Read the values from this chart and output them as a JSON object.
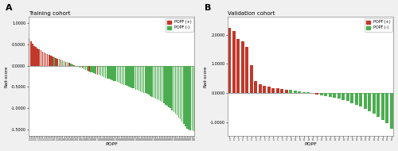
{
  "title_A": "Training cohort",
  "title_B": "Validation cohort",
  "panel_A_label": "A",
  "panel_B_label": "B",
  "xlabel": "POPF",
  "ylabel": "Rad-score",
  "legend_pos_label": "POPF (+)",
  "legend_neg_label": "POPF (-)",
  "color_pos": "#c0392b",
  "color_neg": "#4cad50",
  "bg_color": "#f0f0f0",
  "plot_bg_color": "#ffffff",
  "ylim_A": [
    -1.65,
    1.15
  ],
  "ylim_B": [
    -1.45,
    2.6
  ],
  "yticks_A": [
    -1.5,
    -1.0,
    -0.5,
    0.0,
    0.5,
    1.0
  ],
  "yticks_B": [
    -1.0,
    0.0,
    1.0,
    2.0
  ],
  "training_values": [
    0.65,
    0.58,
    0.52,
    0.47,
    0.44,
    0.41,
    0.38,
    0.36,
    0.33,
    0.31,
    0.29,
    0.27,
    0.25,
    0.23,
    0.22,
    0.2,
    0.19,
    0.17,
    0.16,
    0.14,
    0.13,
    0.11,
    0.09,
    0.08,
    0.06,
    0.05,
    0.03,
    0.01,
    -0.01,
    -0.02,
    -0.04,
    -0.05,
    -0.07,
    -0.09,
    -0.1,
    -0.12,
    -0.13,
    -0.15,
    -0.16,
    -0.18,
    -0.19,
    -0.21,
    -0.22,
    -0.24,
    -0.25,
    -0.27,
    -0.28,
    -0.3,
    -0.31,
    -0.33,
    -0.34,
    -0.36,
    -0.37,
    -0.39,
    -0.4,
    -0.42,
    -0.43,
    -0.45,
    -0.46,
    -0.48,
    -0.5,
    -0.51,
    -0.53,
    -0.54,
    -0.56,
    -0.57,
    -0.59,
    -0.61,
    -0.62,
    -0.64,
    -0.65,
    -0.67,
    -0.69,
    -0.71,
    -0.73,
    -0.75,
    -0.77,
    -0.79,
    -0.81,
    -0.83,
    -0.86,
    -0.89,
    -0.92,
    -0.95,
    -0.98,
    -1.01,
    -1.05,
    -1.09,
    -1.13,
    -1.17,
    -1.22,
    -1.27,
    -1.32,
    -1.37,
    -1.43,
    -1.48,
    -1.5,
    -1.52,
    -1.53,
    -1.55
  ],
  "training_labels": [
    1,
    1,
    1,
    1,
    1,
    1,
    1,
    1,
    1,
    1,
    1,
    1,
    1,
    1,
    1,
    0,
    1,
    1,
    0,
    1,
    0,
    0,
    1,
    0,
    1,
    0,
    0,
    1,
    0,
    0,
    0,
    0,
    1,
    0,
    0,
    0,
    1,
    0,
    0,
    0,
    0,
    1,
    0,
    0,
    0,
    0,
    0,
    0,
    0,
    0,
    0,
    0,
    0,
    0,
    0,
    0,
    0,
    0,
    0,
    0,
    0,
    0,
    0,
    0,
    0,
    0,
    0,
    0,
    0,
    0,
    0,
    0,
    0,
    0,
    0,
    0,
    0,
    0,
    0,
    0,
    0,
    0,
    0,
    0,
    0,
    0,
    0,
    0,
    0,
    0,
    0,
    0,
    0,
    0,
    0,
    0,
    0,
    0,
    0,
    0
  ],
  "validation_values": [
    2.22,
    2.12,
    1.85,
    1.78,
    1.58,
    0.96,
    0.42,
    0.3,
    0.25,
    0.21,
    0.18,
    0.16,
    0.14,
    0.12,
    0.1,
    0.08,
    0.06,
    0.04,
    0.02,
    0.0,
    -0.04,
    -0.07,
    -0.1,
    -0.13,
    -0.16,
    -0.19,
    -0.23,
    -0.28,
    -0.34,
    -0.4,
    -0.46,
    -0.54,
    -0.62,
    -0.7,
    -0.8,
    -0.92,
    -1.02,
    -1.22
  ],
  "validation_labels": [
    1,
    1,
    1,
    1,
    1,
    1,
    1,
    1,
    1,
    1,
    1,
    1,
    1,
    1,
    0,
    0,
    0,
    0,
    0,
    0,
    1,
    0,
    0,
    0,
    0,
    0,
    0,
    0,
    0,
    0,
    0,
    0,
    0,
    0,
    0,
    0,
    0,
    0
  ]
}
